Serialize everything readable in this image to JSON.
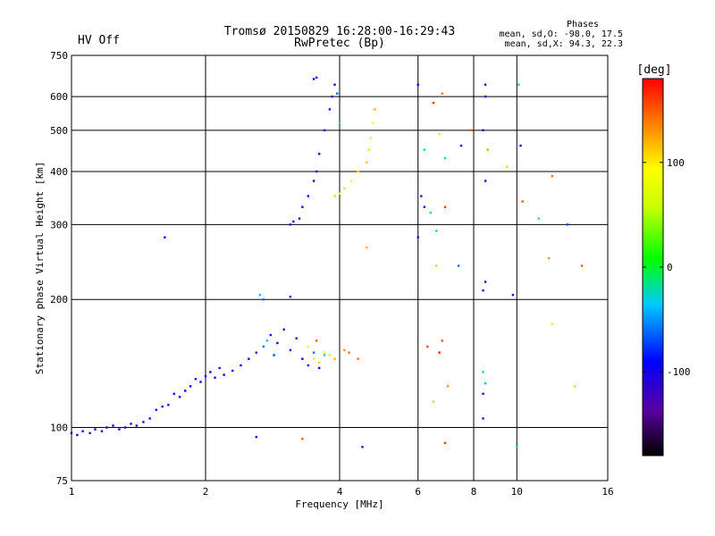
{
  "chart_data": {
    "type": "scatter",
    "title": "Tromsø 20150829 16:28:00-16:29:43",
    "subtitle": "RwPretec (Bp)",
    "status_label": "HV Off",
    "status_color": "#cc0000",
    "phases": {
      "header": "Phases",
      "line_o": "mean, sd,O: -98.0, 17.5",
      "line_x": "mean, sd,X:  94.3, 22.3"
    },
    "xlabel": "Frequency [MHz]",
    "ylabel": "Stationary phase Virtual Height [km]",
    "x_scale": "log",
    "y_scale": "log",
    "xlim": [
      1,
      16
    ],
    "ylim": [
      75,
      750
    ],
    "x_ticks": [
      {
        "value": 1,
        "label": "1"
      },
      {
        "value": 2,
        "label": "2"
      },
      {
        "value": 4,
        "label": "4"
      },
      {
        "value": 6,
        "label": "6"
      },
      {
        "value": 8,
        "label": "8"
      },
      {
        "value": 10,
        "label": "10"
      },
      {
        "value": 16,
        "label": "16"
      }
    ],
    "y_ticks": [
      {
        "value": 75,
        "label": "75"
      },
      {
        "value": 100,
        "label": "100"
      },
      {
        "value": 200,
        "label": "200"
      },
      {
        "value": 300,
        "label": "300"
      },
      {
        "value": 400,
        "label": "400"
      },
      {
        "value": 500,
        "label": "500"
      },
      {
        "value": 600,
        "label": "600"
      },
      {
        "value": 750,
        "label": "750"
      }
    ],
    "grid": true,
    "colorbar": {
      "label": "[deg]",
      "range": [
        -180,
        180
      ],
      "ticks": [
        {
          "value": 100,
          "label": "100"
        },
        {
          "value": 0,
          "label": "0"
        },
        {
          "value": -100,
          "label": "-100"
        }
      ]
    },
    "points": [
      {
        "x": 1.0,
        "y": 97,
        "phase": -98
      },
      {
        "x": 1.03,
        "y": 96,
        "phase": -95
      },
      {
        "x": 1.06,
        "y": 98,
        "phase": -100
      },
      {
        "x": 1.1,
        "y": 97,
        "phase": -102
      },
      {
        "x": 1.13,
        "y": 99,
        "phase": -97
      },
      {
        "x": 1.17,
        "y": 98,
        "phase": -99
      },
      {
        "x": 1.2,
        "y": 100,
        "phase": -96
      },
      {
        "x": 1.24,
        "y": 101,
        "phase": -103
      },
      {
        "x": 1.28,
        "y": 99,
        "phase": -98
      },
      {
        "x": 1.32,
        "y": 100,
        "phase": -94
      },
      {
        "x": 1.36,
        "y": 102,
        "phase": -100
      },
      {
        "x": 1.4,
        "y": 101,
        "phase": -97
      },
      {
        "x": 1.45,
        "y": 103,
        "phase": -101
      },
      {
        "x": 1.5,
        "y": 105,
        "phase": -99
      },
      {
        "x": 1.55,
        "y": 110,
        "phase": -96
      },
      {
        "x": 1.6,
        "y": 112,
        "phase": -100
      },
      {
        "x": 1.65,
        "y": 113,
        "phase": -98
      },
      {
        "x": 1.7,
        "y": 120,
        "phase": -102
      },
      {
        "x": 1.75,
        "y": 118,
        "phase": -95
      },
      {
        "x": 1.8,
        "y": 122,
        "phase": -99
      },
      {
        "x": 1.85,
        "y": 125,
        "phase": -97
      },
      {
        "x": 1.9,
        "y": 130,
        "phase": -101
      },
      {
        "x": 1.95,
        "y": 128,
        "phase": -98
      },
      {
        "x": 2.0,
        "y": 132,
        "phase": -100
      },
      {
        "x": 2.05,
        "y": 135,
        "phase": -96
      },
      {
        "x": 2.1,
        "y": 131,
        "phase": -103
      },
      {
        "x": 2.15,
        "y": 138,
        "phase": -99
      },
      {
        "x": 2.2,
        "y": 133,
        "phase": -97
      },
      {
        "x": 2.3,
        "y": 136,
        "phase": -100
      },
      {
        "x": 2.4,
        "y": 140,
        "phase": -95
      },
      {
        "x": 2.5,
        "y": 145,
        "phase": -98
      },
      {
        "x": 2.6,
        "y": 150,
        "phase": -80
      },
      {
        "x": 2.7,
        "y": 155,
        "phase": -60
      },
      {
        "x": 2.75,
        "y": 160,
        "phase": -40
      },
      {
        "x": 2.8,
        "y": 165,
        "phase": -100
      },
      {
        "x": 2.85,
        "y": 148,
        "phase": -70
      },
      {
        "x": 2.9,
        "y": 158,
        "phase": -90
      },
      {
        "x": 3.0,
        "y": 170,
        "phase": -100
      },
      {
        "x": 3.1,
        "y": 152,
        "phase": -85
      },
      {
        "x": 3.2,
        "y": 162,
        "phase": -98
      },
      {
        "x": 3.3,
        "y": 145,
        "phase": -92
      },
      {
        "x": 3.4,
        "y": 140,
        "phase": -99
      },
      {
        "x": 3.5,
        "y": 150,
        "phase": -60
      },
      {
        "x": 3.6,
        "y": 138,
        "phase": -100
      },
      {
        "x": 3.7,
        "y": 148,
        "phase": -30
      },
      {
        "x": 2.7,
        "y": 200,
        "phase": -60
      },
      {
        "x": 2.65,
        "y": 205,
        "phase": -40
      },
      {
        "x": 3.1,
        "y": 203,
        "phase": -110
      },
      {
        "x": 3.4,
        "y": 155,
        "phase": 90
      },
      {
        "x": 3.5,
        "y": 145,
        "phase": 100
      },
      {
        "x": 3.6,
        "y": 142,
        "phase": 110
      },
      {
        "x": 3.7,
        "y": 150,
        "phase": 95
      },
      {
        "x": 3.8,
        "y": 148,
        "phase": 105
      },
      {
        "x": 3.9,
        "y": 145,
        "phase": 120
      },
      {
        "x": 4.1,
        "y": 152,
        "phase": 130
      },
      {
        "x": 4.2,
        "y": 150,
        "phase": 140
      },
      {
        "x": 3.55,
        "y": 160,
        "phase": 150
      },
      {
        "x": 3.1,
        "y": 300,
        "phase": -105
      },
      {
        "x": 3.15,
        "y": 305,
        "phase": -100
      },
      {
        "x": 3.25,
        "y": 310,
        "phase": -98
      },
      {
        "x": 3.3,
        "y": 330,
        "phase": -102
      },
      {
        "x": 3.4,
        "y": 350,
        "phase": -96
      },
      {
        "x": 3.5,
        "y": 380,
        "phase": -100
      },
      {
        "x": 3.55,
        "y": 400,
        "phase": -97
      },
      {
        "x": 3.6,
        "y": 440,
        "phase": -101
      },
      {
        "x": 3.7,
        "y": 500,
        "phase": -99
      },
      {
        "x": 3.8,
        "y": 560,
        "phase": -100
      },
      {
        "x": 3.85,
        "y": 600,
        "phase": -95
      },
      {
        "x": 3.9,
        "y": 640,
        "phase": -100
      },
      {
        "x": 3.95,
        "y": 610,
        "phase": -60
      },
      {
        "x": 4.0,
        "y": 520,
        "phase": -20
      },
      {
        "x": 3.5,
        "y": 660,
        "phase": -100
      },
      {
        "x": 3.55,
        "y": 665,
        "phase": -98
      },
      {
        "x": 3.9,
        "y": 350,
        "phase": 110
      },
      {
        "x": 4.0,
        "y": 355,
        "phase": 100
      },
      {
        "x": 4.1,
        "y": 365,
        "phase": 105
      },
      {
        "x": 4.25,
        "y": 380,
        "phase": 95
      },
      {
        "x": 4.4,
        "y": 400,
        "phase": 100
      },
      {
        "x": 4.6,
        "y": 420,
        "phase": 110
      },
      {
        "x": 4.65,
        "y": 450,
        "phase": 105
      },
      {
        "x": 4.7,
        "y": 480,
        "phase": 100
      },
      {
        "x": 4.75,
        "y": 520,
        "phase": 95
      },
      {
        "x": 4.8,
        "y": 560,
        "phase": 120
      },
      {
        "x": 6.0,
        "y": 640,
        "phase": -100
      },
      {
        "x": 6.5,
        "y": 580,
        "phase": 170
      },
      {
        "x": 6.8,
        "y": 610,
        "phase": 140
      },
      {
        "x": 6.7,
        "y": 490,
        "phase": 60
      },
      {
        "x": 6.2,
        "y": 450,
        "phase": -30
      },
      {
        "x": 6.9,
        "y": 430,
        "phase": -10
      },
      {
        "x": 7.5,
        "y": 460,
        "phase": -110
      },
      {
        "x": 7.9,
        "y": 500,
        "phase": 150
      },
      {
        "x": 8.5,
        "y": 640,
        "phase": -110
      },
      {
        "x": 8.5,
        "y": 600,
        "phase": -90
      },
      {
        "x": 8.4,
        "y": 500,
        "phase": -95
      },
      {
        "x": 8.6,
        "y": 450,
        "phase": 125
      },
      {
        "x": 9.5,
        "y": 410,
        "phase": 110
      },
      {
        "x": 10.1,
        "y": 640,
        "phase": -20
      },
      {
        "x": 10.2,
        "y": 460,
        "phase": -110
      },
      {
        "x": 10.3,
        "y": 340,
        "phase": 150
      },
      {
        "x": 12.0,
        "y": 390,
        "phase": 145
      },
      {
        "x": 11.2,
        "y": 310,
        "phase": -30
      },
      {
        "x": 11.8,
        "y": 250,
        "phase": 130
      },
      {
        "x": 14.0,
        "y": 240,
        "phase": 150
      },
      {
        "x": 13.0,
        "y": 300,
        "phase": -70
      },
      {
        "x": 6.2,
        "y": 330,
        "phase": -100
      },
      {
        "x": 6.4,
        "y": 320,
        "phase": -20
      },
      {
        "x": 6.6,
        "y": 290,
        "phase": -30
      },
      {
        "x": 6.0,
        "y": 280,
        "phase": -110
      },
      {
        "x": 6.6,
        "y": 240,
        "phase": 110
      },
      {
        "x": 7.4,
        "y": 240,
        "phase": -60
      },
      {
        "x": 6.1,
        "y": 350,
        "phase": -120
      },
      {
        "x": 6.9,
        "y": 330,
        "phase": 160
      },
      {
        "x": 8.5,
        "y": 380,
        "phase": -100
      },
      {
        "x": 8.5,
        "y": 220,
        "phase": -110
      },
      {
        "x": 8.4,
        "y": 210,
        "phase": -120
      },
      {
        "x": 9.8,
        "y": 205,
        "phase": -110
      },
      {
        "x": 4.6,
        "y": 265,
        "phase": 120
      },
      {
        "x": 1.62,
        "y": 280,
        "phase": -100
      },
      {
        "x": 6.8,
        "y": 160,
        "phase": 150
      },
      {
        "x": 6.7,
        "y": 150,
        "phase": 170
      },
      {
        "x": 6.3,
        "y": 155,
        "phase": 160
      },
      {
        "x": 8.4,
        "y": 135,
        "phase": -30
      },
      {
        "x": 8.5,
        "y": 127,
        "phase": -40
      },
      {
        "x": 8.4,
        "y": 120,
        "phase": -110
      },
      {
        "x": 8.4,
        "y": 105,
        "phase": -110
      },
      {
        "x": 6.5,
        "y": 115,
        "phase": 110
      },
      {
        "x": 7.0,
        "y": 125,
        "phase": 130
      },
      {
        "x": 12.0,
        "y": 175,
        "phase": 100
      },
      {
        "x": 13.5,
        "y": 125,
        "phase": 110
      },
      {
        "x": 4.4,
        "y": 145,
        "phase": 140
      },
      {
        "x": 2.6,
        "y": 95,
        "phase": -110
      },
      {
        "x": 3.3,
        "y": 94,
        "phase": 150
      },
      {
        "x": 4.5,
        "y": 90,
        "phase": -115
      },
      {
        "x": 6.9,
        "y": 92,
        "phase": 160
      },
      {
        "x": 10.0,
        "y": 90,
        "phase": -20
      }
    ]
  }
}
